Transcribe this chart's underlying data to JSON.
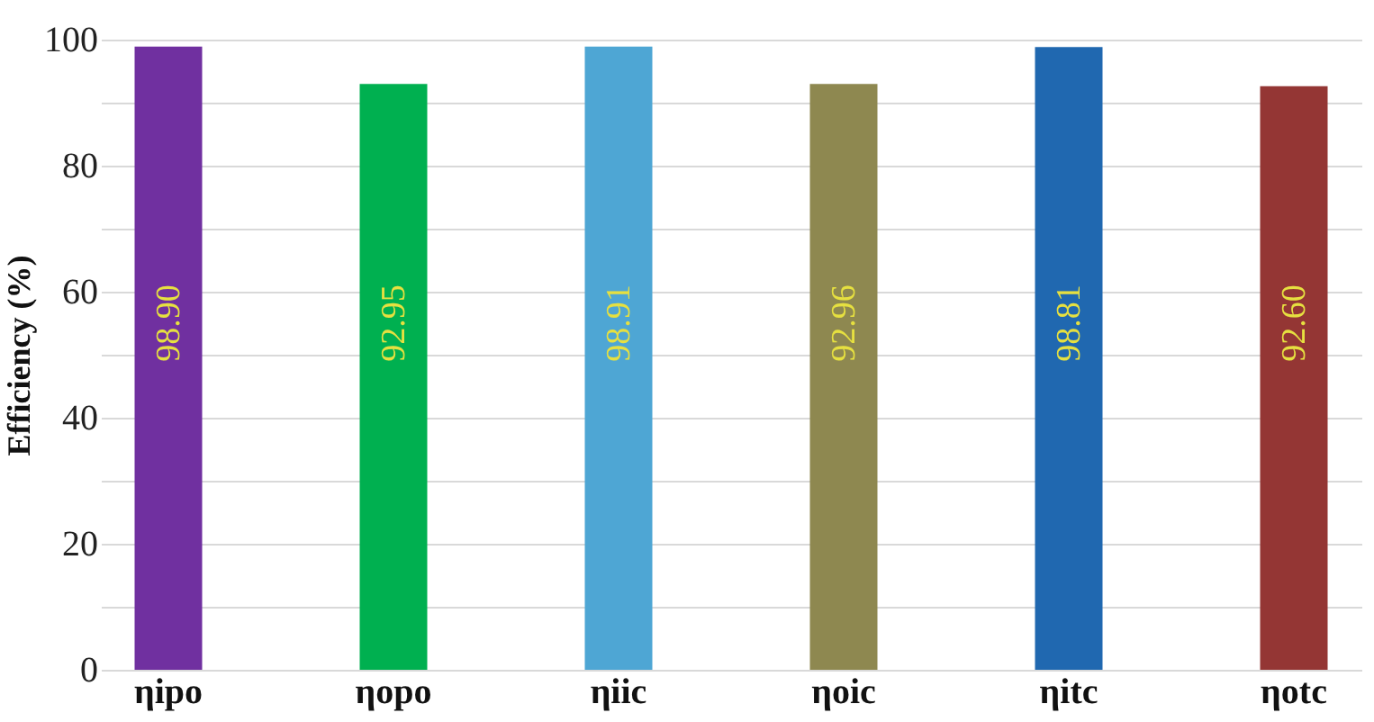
{
  "chart_data": {
    "type": "bar",
    "ylabel": "Efficiency (%)",
    "categories": [
      "ηipo",
      "ηopo",
      "ηiic",
      "ηoic",
      "ηitc",
      "ηotc"
    ],
    "values": [
      98.9,
      92.95,
      98.91,
      92.96,
      98.81,
      92.6
    ],
    "value_labels": [
      "98.90",
      "92.95",
      "98.91",
      "92.96",
      "98.81",
      "92.60"
    ],
    "colors": [
      "#7030a0",
      "#00b050",
      "#4ea6d4",
      "#8e8850",
      "#2068b0",
      "#943634"
    ],
    "ylim": [
      0,
      100
    ],
    "yticks": [
      0,
      {
        "value": 10,
        "label": null
      },
      20,
      {
        "value": 30,
        "label": null
      },
      40,
      {
        "value": 50,
        "label": null
      },
      60,
      {
        "value": 70,
        "label": null
      },
      80,
      {
        "value": 90,
        "label": null
      },
      100
    ],
    "grid": true
  }
}
